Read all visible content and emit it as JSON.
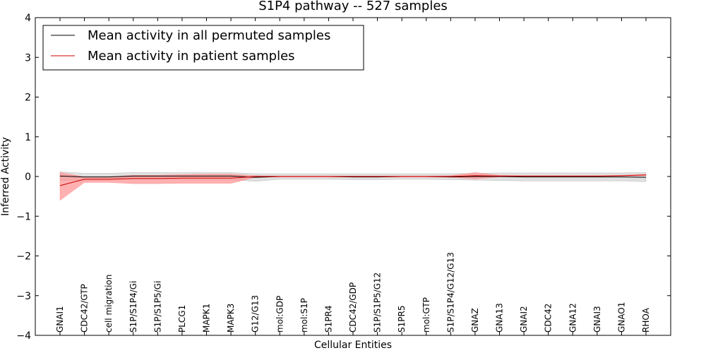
{
  "chart_data": {
    "type": "line",
    "title": "S1P4 pathway -- 527 samples",
    "xlabel": "Cellular Entities",
    "ylabel": "Inferred Activity",
    "ylim": [
      -4,
      4
    ],
    "yticks": [
      -4,
      -3,
      -2,
      -1,
      0,
      1,
      2,
      3,
      4
    ],
    "categories": [
      "GNAI1",
      "CDC42/GTP",
      "cell migration",
      "S1P/S1P4/Gi",
      "S1P/S1P5/Gi",
      "PLCG1",
      "MAPK1",
      "MAPK3",
      "G12/G13",
      "mol:GDP",
      "mol:S1P",
      "S1PR4",
      "CDC42/GDP",
      "S1P/S1P5/G12",
      "S1PR5",
      "mol:GTP",
      "S1P/S1P4/G12/G13",
      "GNAZ",
      "GNA13",
      "GNAI2",
      "CDC42",
      "GNA12",
      "GNAI3",
      "GNAO1",
      "RHOA"
    ],
    "legend": {
      "placement": "top-left",
      "entries": [
        "Mean activity in all permuted samples",
        "Mean activity in patient samples"
      ]
    },
    "series": [
      {
        "name": "Mean activity in all permuted samples",
        "color": "#000000",
        "band_color": "#bbbbbb",
        "values": [
          0.01,
          -0.01,
          -0.01,
          0.01,
          0.01,
          0.01,
          0.01,
          0.01,
          -0.02,
          0.0,
          0.0,
          0.0,
          -0.01,
          -0.01,
          0.0,
          0.0,
          -0.01,
          0.0,
          0.0,
          -0.01,
          -0.01,
          -0.01,
          -0.01,
          -0.01,
          -0.02
        ],
        "upper": [
          0.12,
          0.08,
          0.08,
          0.1,
          0.1,
          0.1,
          0.1,
          0.1,
          0.07,
          0.07,
          0.07,
          0.07,
          0.07,
          0.07,
          0.07,
          0.07,
          0.07,
          0.08,
          0.09,
          0.09,
          0.09,
          0.09,
          0.09,
          0.09,
          0.1
        ],
        "lower": [
          -0.1,
          -0.1,
          -0.1,
          -0.08,
          -0.08,
          -0.08,
          -0.08,
          -0.08,
          -0.12,
          -0.07,
          -0.07,
          -0.07,
          -0.08,
          -0.08,
          -0.07,
          -0.07,
          -0.08,
          -0.09,
          -0.1,
          -0.11,
          -0.11,
          -0.11,
          -0.11,
          -0.11,
          -0.13
        ]
      },
      {
        "name": "Mean activity in patient samples",
        "color": "#cc0000",
        "band_color": "#ff9090",
        "values": [
          -0.23,
          -0.07,
          -0.07,
          -0.05,
          -0.05,
          -0.04,
          -0.04,
          -0.04,
          0.0,
          0.0,
          0.0,
          0.0,
          0.0,
          0.0,
          0.0,
          0.0,
          0.0,
          0.02,
          0.01,
          0.01,
          0.01,
          0.01,
          0.01,
          0.02,
          0.04
        ],
        "upper": [
          0.1,
          -0.01,
          -0.01,
          0.03,
          0.03,
          0.05,
          0.06,
          0.06,
          0.02,
          0.01,
          0.01,
          0.01,
          0.01,
          0.01,
          0.01,
          0.01,
          0.02,
          0.1,
          0.03,
          0.02,
          0.02,
          0.02,
          0.02,
          0.03,
          0.05
        ],
        "lower": [
          -0.6,
          -0.15,
          -0.15,
          -0.18,
          -0.18,
          -0.17,
          -0.17,
          -0.17,
          -0.02,
          -0.01,
          -0.01,
          -0.01,
          -0.01,
          -0.01,
          -0.01,
          -0.01,
          -0.02,
          -0.06,
          -0.01,
          0.0,
          0.0,
          0.0,
          0.0,
          0.01,
          0.02
        ]
      }
    ]
  }
}
